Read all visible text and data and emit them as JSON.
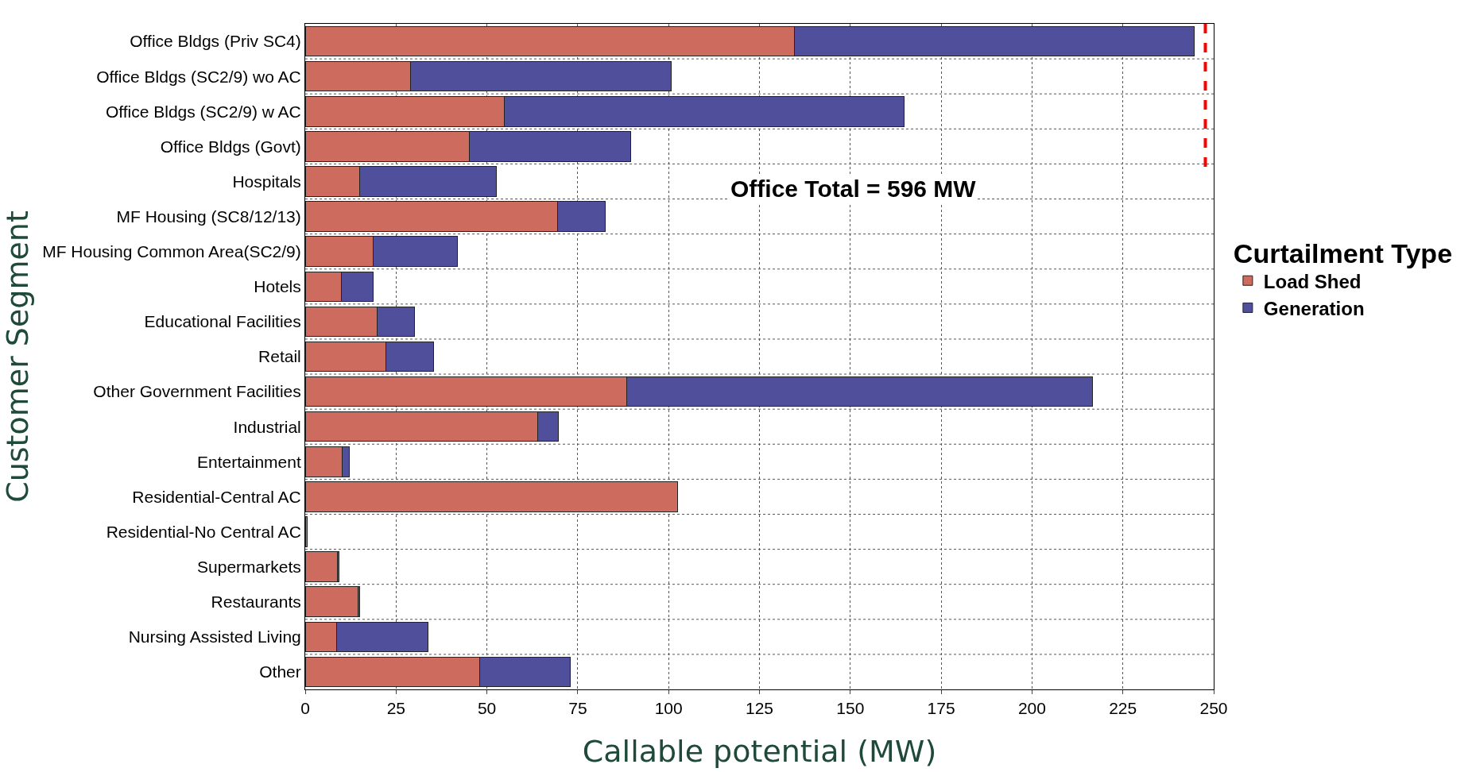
{
  "chart_data": {
    "type": "bar",
    "orientation": "horizontal",
    "stacked": true,
    "categories": [
      "Office Bldgs (Priv SC4)",
      "Office Bldgs (SC2/9) wo AC",
      "Office Bldgs (SC2/9) w AC",
      "Office Bldgs (Govt)",
      "Hospitals",
      "MF Housing (SC8/12/13)",
      "MF Housing Common Area(SC2/9)",
      "Hotels",
      "Educational Facilities",
      "Retail",
      "Other Government Facilities",
      "Industrial",
      "Entertainment",
      "Residential-Central AC",
      "Residential-No Central AC",
      "Supermarkets",
      "Restaurants",
      "Nursing Assisted Living",
      "Other"
    ],
    "series": [
      {
        "name": "Load Shed",
        "color": "#cc6b5e",
        "values": [
          134.7,
          29,
          54.8,
          45.2,
          14.9,
          69.4,
          18.8,
          9.9,
          19.8,
          22.1,
          88.5,
          64,
          10.2,
          102.4,
          0.5,
          8.9,
          14.5,
          8.6,
          47.9
        ]
      },
      {
        "name": "Generation",
        "color": "#4f4f9c",
        "values": [
          110,
          71.7,
          110,
          44.3,
          37.6,
          13.2,
          23.1,
          8.9,
          10.2,
          13.2,
          128.1,
          5.7,
          2,
          null,
          null,
          0.3,
          0.4,
          25.1,
          25.1
        ]
      }
    ],
    "xlabel": "Callable potential (MW)",
    "ylabel": "Customer Segment",
    "legend_title": "Curtailment Type",
    "xlim": [
      0,
      250
    ],
    "xticks": [
      0,
      25,
      50,
      75,
      100,
      125,
      150,
      175,
      200,
      225,
      250
    ],
    "grid": true,
    "legend": "right",
    "ref_lines": [
      {
        "axis": "x",
        "value": 247.7,
        "color": "#ff0000",
        "line_style": "dashed"
      }
    ],
    "annotations": [
      "Office Total = 596 MW"
    ]
  }
}
